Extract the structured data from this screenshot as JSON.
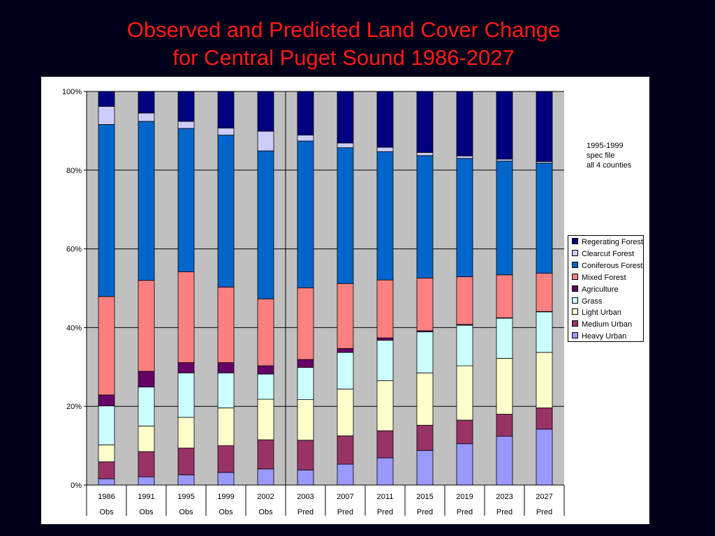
{
  "title_line1": "Observed and Predicted Land Cover Change",
  "title_line2": "for Central Puget Sound 1986-2027",
  "note_lines": [
    "1995-1999",
    "spec file",
    "all 4 counties"
  ],
  "colors": {
    "background": "#000018",
    "title": "#ff1a1a",
    "plot_area": "#c0c0c0"
  },
  "chart_data": {
    "type": "bar",
    "stacked": true,
    "percent_stacked": true,
    "categories": [
      "1986",
      "1991",
      "1995",
      "1999",
      "2002",
      "2003",
      "2007",
      "2011",
      "2015",
      "2019",
      "2023",
      "2027"
    ],
    "category_sublabels": [
      "Obs",
      "Obs",
      "Obs",
      "Obs",
      "Obs",
      "Pred",
      "Pred",
      "Pred",
      "Pred",
      "Pred",
      "Pred",
      "Pred"
    ],
    "ylim": [
      0,
      100
    ],
    "y_ticks": [
      "0%",
      "20%",
      "40%",
      "60%",
      "80%",
      "100%"
    ],
    "grid": true,
    "divider_after_category": "2002",
    "legend_position": "right",
    "series": [
      {
        "name": "Heavy Urban",
        "color": "#9999ff",
        "values": [
          1.6,
          2.1,
          2.6,
          3.2,
          4.1,
          3.8,
          5.3,
          6.9,
          8.8,
          10.5,
          12.4,
          14.2
        ]
      },
      {
        "name": "Medium Urban",
        "color": "#993366",
        "values": [
          4.3,
          6.4,
          6.8,
          6.8,
          7.4,
          7.6,
          7.2,
          6.9,
          6.4,
          6.0,
          5.6,
          5.4
        ]
      },
      {
        "name": "Light Urban",
        "color": "#ffffcc",
        "values": [
          4.3,
          6.5,
          7.8,
          9.6,
          10.3,
          10.3,
          11.9,
          12.7,
          13.3,
          13.8,
          14.2,
          14.1
        ]
      },
      {
        "name": "Grass",
        "color": "#ccffff",
        "values": [
          9.9,
          9.9,
          11.3,
          8.9,
          6.4,
          8.2,
          9.3,
          10.3,
          10.4,
          10.3,
          10.2,
          10.3
        ]
      },
      {
        "name": "Agriculture",
        "color": "#660066",
        "values": [
          2.8,
          4.0,
          2.6,
          2.6,
          2.1,
          2.0,
          1.0,
          0.6,
          0.3,
          0.2,
          0.1,
          0.1
        ]
      },
      {
        "name": "Mixed Forest",
        "color": "#ff8080",
        "values": [
          25.0,
          23.1,
          23.1,
          19.2,
          17.0,
          18.2,
          16.5,
          14.7,
          13.4,
          12.1,
          10.9,
          9.7
        ]
      },
      {
        "name": "Coniferous Forest",
        "color": "#0066cc",
        "values": [
          43.7,
          40.4,
          36.4,
          38.6,
          37.6,
          37.3,
          34.5,
          32.6,
          31.1,
          30.1,
          28.9,
          28.0
        ]
      },
      {
        "name": "Clearcut Forest",
        "color": "#ccccff",
        "values": [
          4.6,
          2.1,
          1.8,
          1.8,
          5.0,
          1.5,
          1.2,
          1.1,
          0.8,
          0.6,
          0.5,
          0.4
        ]
      },
      {
        "name": "Regerating Forest",
        "color": "#000080",
        "values": [
          3.8,
          5.5,
          7.6,
          9.3,
          10.1,
          11.1,
          13.1,
          14.2,
          15.5,
          16.4,
          17.2,
          17.8
        ]
      }
    ]
  }
}
